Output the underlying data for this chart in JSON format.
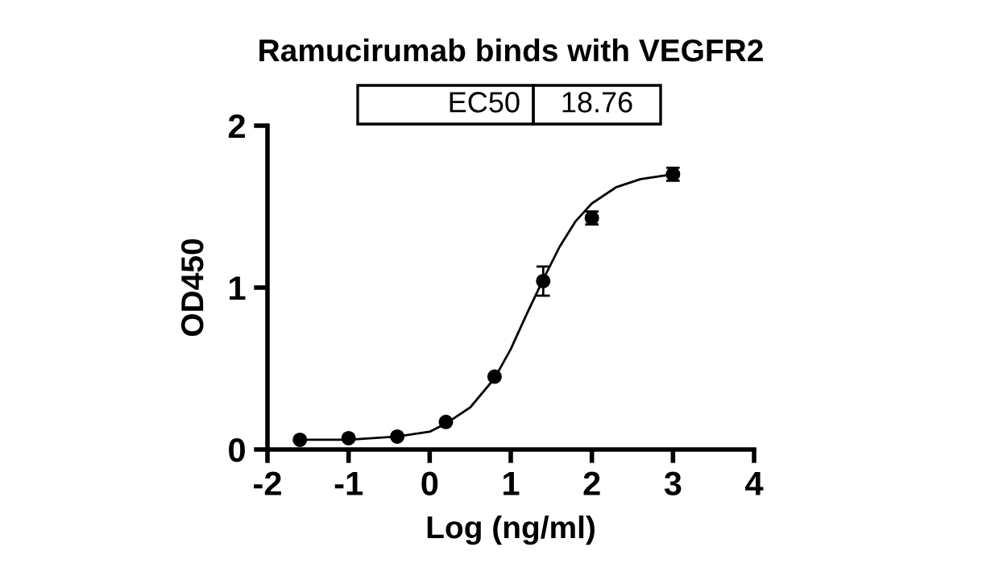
{
  "chart_data": {
    "type": "scatter",
    "title": "Ramucirumab binds with VEGFR2",
    "xlabel": "Log (ng/ml)",
    "ylabel": "OD450",
    "annotations": [
      "EC50",
      "18.76"
    ],
    "xlim": [
      -2,
      4
    ],
    "xticks": [
      -2,
      -1,
      0,
      1,
      2,
      3,
      4
    ],
    "ylim": [
      0,
      2
    ],
    "yticks": [
      0,
      1,
      2
    ],
    "grid": false,
    "series": [
      {
        "color": "#000000",
        "marker": "circle",
        "x": [
          -1.6,
          -1,
          -0.4,
          0.2,
          0.8,
          1.4,
          2,
          3
        ],
        "values": [
          0.06,
          0.07,
          0.08,
          0.17,
          0.45,
          1.04,
          1.43,
          1.7
        ],
        "errors": [
          null,
          null,
          null,
          null,
          null,
          0.09,
          0.04,
          0.04
        ]
      },
      {
        "type": "line",
        "color": "#000000",
        "marker": "none",
        "line_style": "solid",
        "x": [
          -1.6,
          -1,
          -0.4,
          0,
          0.2,
          0.5,
          0.8,
          1.0,
          1.2,
          1.4,
          1.6,
          1.8,
          2.0,
          2.3,
          2.6,
          3.0
        ],
        "values": [
          0.06,
          0.06,
          0.08,
          0.11,
          0.16,
          0.26,
          0.44,
          0.62,
          0.84,
          1.05,
          1.25,
          1.41,
          1.52,
          1.62,
          1.67,
          1.7
        ]
      }
    ]
  }
}
